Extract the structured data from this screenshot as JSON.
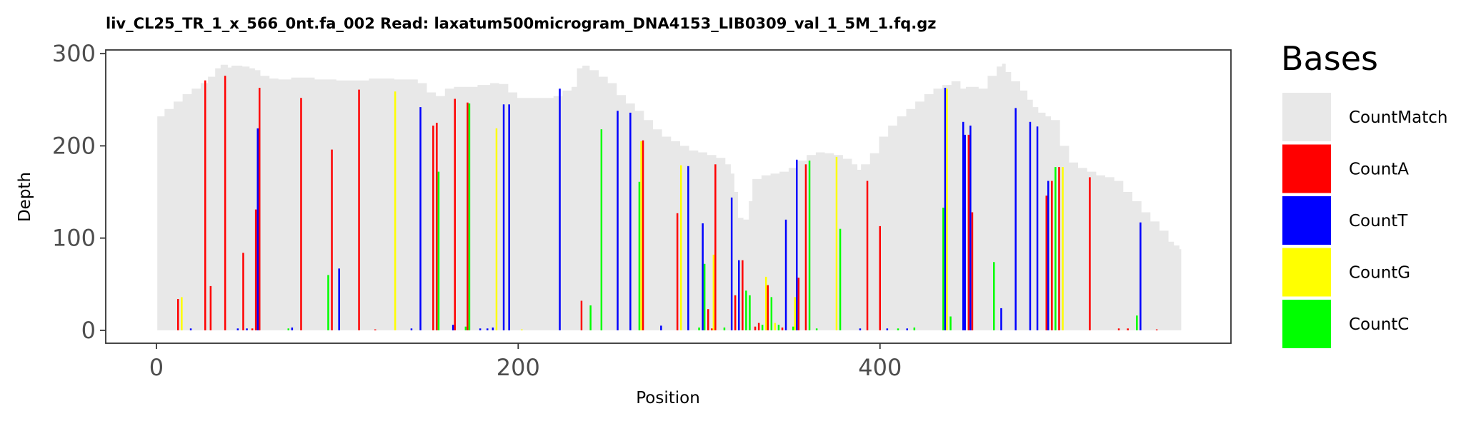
{
  "chart_data": {
    "type": "bar",
    "title": "liv_CL25_TR_1_x_566_0nt.fa_002   Read: laxatum500microgram_DNA4153_LIB0309_val_1_5M_1.fq.gz",
    "xlabel": "Position",
    "ylabel": "Depth",
    "xlim": [
      -28,
      594
    ],
    "ylim": [
      -14,
      304
    ],
    "x_ticks": [
      "0",
      "200",
      "400"
    ],
    "x_tick_values": [
      0,
      200,
      400
    ],
    "y_ticks": [
      "0",
      "100",
      "200",
      "300"
    ],
    "y_tick_values": [
      0,
      100,
      200,
      300
    ],
    "legend": {
      "title": "Bases",
      "position": "right",
      "entries": [
        {
          "label": "CountMatch",
          "color": "#e8e8e8"
        },
        {
          "label": "CountA",
          "color": "#ff0000"
        },
        {
          "label": "CountT",
          "color": "#0000ff"
        },
        {
          "label": "CountG",
          "color": "#ffff00"
        },
        {
          "label": "CountC",
          "color": "#00ff00"
        }
      ]
    },
    "match_profile": [
      [
        1,
        232
      ],
      [
        5,
        240
      ],
      [
        10,
        248
      ],
      [
        15,
        256
      ],
      [
        20,
        262
      ],
      [
        25,
        268
      ],
      [
        29,
        275
      ],
      [
        33,
        284
      ],
      [
        36,
        288
      ],
      [
        40,
        285
      ],
      [
        42,
        287
      ],
      [
        48,
        286
      ],
      [
        52,
        284
      ],
      [
        55,
        282
      ],
      [
        58,
        276
      ],
      [
        63,
        273
      ],
      [
        68,
        272
      ],
      [
        75,
        274
      ],
      [
        82,
        274
      ],
      [
        88,
        272
      ],
      [
        95,
        272
      ],
      [
        100,
        271
      ],
      [
        110,
        271
      ],
      [
        118,
        273
      ],
      [
        125,
        273
      ],
      [
        132,
        272
      ],
      [
        140,
        272
      ],
      [
        145,
        268
      ],
      [
        150,
        258
      ],
      [
        155,
        254
      ],
      [
        160,
        262
      ],
      [
        165,
        264
      ],
      [
        170,
        264
      ],
      [
        178,
        266
      ],
      [
        185,
        268
      ],
      [
        190,
        267
      ],
      [
        195,
        258
      ],
      [
        200,
        252
      ],
      [
        205,
        252
      ],
      [
        210,
        252
      ],
      [
        215,
        252
      ],
      [
        220,
        254
      ],
      [
        225,
        260
      ],
      [
        230,
        264
      ],
      [
        233,
        284
      ],
      [
        236,
        287
      ],
      [
        240,
        282
      ],
      [
        245,
        275
      ],
      [
        250,
        268
      ],
      [
        255,
        255
      ],
      [
        260,
        246
      ],
      [
        265,
        238
      ],
      [
        270,
        228
      ],
      [
        275,
        218
      ],
      [
        280,
        210
      ],
      [
        285,
        205
      ],
      [
        290,
        200
      ],
      [
        295,
        195
      ],
      [
        300,
        193
      ],
      [
        305,
        190
      ],
      [
        310,
        187
      ],
      [
        315,
        180
      ],
      [
        318,
        170
      ],
      [
        320,
        150
      ],
      [
        322,
        122
      ],
      [
        325,
        120
      ],
      [
        328,
        140
      ],
      [
        330,
        164
      ],
      [
        335,
        168
      ],
      [
        340,
        170
      ],
      [
        345,
        172
      ],
      [
        350,
        176
      ],
      [
        355,
        184
      ],
      [
        360,
        190
      ],
      [
        365,
        193
      ],
      [
        370,
        192
      ],
      [
        375,
        190
      ],
      [
        380,
        186
      ],
      [
        385,
        180
      ],
      [
        388,
        174
      ],
      [
        390,
        180
      ],
      [
        395,
        192
      ],
      [
        400,
        210
      ],
      [
        405,
        222
      ],
      [
        410,
        232
      ],
      [
        415,
        240
      ],
      [
        420,
        248
      ],
      [
        425,
        256
      ],
      [
        430,
        262
      ],
      [
        435,
        266
      ],
      [
        440,
        270
      ],
      [
        445,
        262
      ],
      [
        448,
        264
      ],
      [
        455,
        262
      ],
      [
        460,
        276
      ],
      [
        465,
        286
      ],
      [
        468,
        289
      ],
      [
        470,
        280
      ],
      [
        473,
        270
      ],
      [
        478,
        260
      ],
      [
        482,
        250
      ],
      [
        485,
        242
      ],
      [
        488,
        236
      ],
      [
        492,
        232
      ],
      [
        495,
        228
      ],
      [
        500,
        200
      ],
      [
        505,
        182
      ],
      [
        510,
        176
      ],
      [
        515,
        172
      ],
      [
        520,
        168
      ],
      [
        525,
        166
      ],
      [
        530,
        162
      ],
      [
        535,
        150
      ],
      [
        540,
        140
      ],
      [
        545,
        128
      ],
      [
        550,
        118
      ],
      [
        555,
        108
      ],
      [
        560,
        96
      ],
      [
        563,
        92
      ],
      [
        566,
        88
      ]
    ],
    "variant_bars": [
      {
        "x": 12,
        "base": "A",
        "value": 34
      },
      {
        "x": 14,
        "base": "G",
        "value": 36
      },
      {
        "x": 19,
        "base": "T",
        "value": 2
      },
      {
        "x": 27,
        "base": "A",
        "value": 271
      },
      {
        "x": 30,
        "base": "A",
        "value": 48
      },
      {
        "x": 38,
        "base": "A",
        "value": 276
      },
      {
        "x": 45,
        "base": "T",
        "value": 2
      },
      {
        "x": 48,
        "base": "A",
        "value": 84
      },
      {
        "x": 50,
        "base": "T",
        "value": 2
      },
      {
        "x": 53,
        "base": "A",
        "value": 2
      },
      {
        "x": 55,
        "base": "A",
        "value": 131
      },
      {
        "x": 56,
        "base": "T",
        "value": 219
      },
      {
        "x": 57,
        "base": "A",
        "value": 263
      },
      {
        "x": 73,
        "base": "C",
        "value": 2
      },
      {
        "x": 75,
        "base": "T",
        "value": 3
      },
      {
        "x": 80,
        "base": "A",
        "value": 252
      },
      {
        "x": 95,
        "base": "C",
        "value": 60
      },
      {
        "x": 97,
        "base": "A",
        "value": 196
      },
      {
        "x": 101,
        "base": "T",
        "value": 67
      },
      {
        "x": 112,
        "base": "A",
        "value": 261
      },
      {
        "x": 121,
        "base": "A",
        "value": 1
      },
      {
        "x": 132,
        "base": "G",
        "value": 259
      },
      {
        "x": 141,
        "base": "T",
        "value": 2
      },
      {
        "x": 146,
        "base": "T",
        "value": 242
      },
      {
        "x": 153,
        "base": "A",
        "value": 222
      },
      {
        "x": 155,
        "base": "A",
        "value": 225
      },
      {
        "x": 156,
        "base": "C",
        "value": 172
      },
      {
        "x": 164,
        "base": "T",
        "value": 6
      },
      {
        "x": 165,
        "base": "A",
        "value": 251
      },
      {
        "x": 171,
        "base": "C",
        "value": 4
      },
      {
        "x": 172,
        "base": "A",
        "value": 247
      },
      {
        "x": 173,
        "base": "C",
        "value": 246
      },
      {
        "x": 179,
        "base": "T",
        "value": 2
      },
      {
        "x": 183,
        "base": "T",
        "value": 2
      },
      {
        "x": 186,
        "base": "T",
        "value": 3
      },
      {
        "x": 188,
        "base": "G",
        "value": 219
      },
      {
        "x": 192,
        "base": "T",
        "value": 245
      },
      {
        "x": 195,
        "base": "T",
        "value": 245
      },
      {
        "x": 202,
        "base": "G",
        "value": 1
      },
      {
        "x": 223,
        "base": "T",
        "value": 262
      },
      {
        "x": 235,
        "base": "A",
        "value": 32
      },
      {
        "x": 240,
        "base": "C",
        "value": 27
      },
      {
        "x": 246,
        "base": "C",
        "value": 218
      },
      {
        "x": 255,
        "base": "T",
        "value": 238
      },
      {
        "x": 262,
        "base": "T",
        "value": 236
      },
      {
        "x": 267,
        "base": "C",
        "value": 161
      },
      {
        "x": 268,
        "base": "G",
        "value": 205
      },
      {
        "x": 269,
        "base": "A",
        "value": 206
      },
      {
        "x": 279,
        "base": "T",
        "value": 5
      },
      {
        "x": 288,
        "base": "A",
        "value": 127
      },
      {
        "x": 290,
        "base": "G",
        "value": 179
      },
      {
        "x": 294,
        "base": "T",
        "value": 178
      },
      {
        "x": 300,
        "base": "C",
        "value": 3
      },
      {
        "x": 302,
        "base": "T",
        "value": 116
      },
      {
        "x": 303,
        "base": "C",
        "value": 72
      },
      {
        "x": 305,
        "base": "A",
        "value": 23
      },
      {
        "x": 307,
        "base": "A",
        "value": 2
      },
      {
        "x": 308,
        "base": "G",
        "value": 82
      },
      {
        "x": 309,
        "base": "A",
        "value": 180
      },
      {
        "x": 314,
        "base": "C",
        "value": 3
      },
      {
        "x": 318,
        "base": "T",
        "value": 144
      },
      {
        "x": 320,
        "base": "A",
        "value": 38
      },
      {
        "x": 322,
        "base": "T",
        "value": 76
      },
      {
        "x": 324,
        "base": "A",
        "value": 76
      },
      {
        "x": 326,
        "base": "C",
        "value": 43
      },
      {
        "x": 328,
        "base": "C",
        "value": 38
      },
      {
        "x": 331,
        "base": "A",
        "value": 4
      },
      {
        "x": 333,
        "base": "A",
        "value": 8
      },
      {
        "x": 335,
        "base": "C",
        "value": 6
      },
      {
        "x": 337,
        "base": "G",
        "value": 58
      },
      {
        "x": 338,
        "base": "A",
        "value": 49
      },
      {
        "x": 340,
        "base": "C",
        "value": 36
      },
      {
        "x": 342,
        "base": "G",
        "value": 8
      },
      {
        "x": 344,
        "base": "C",
        "value": 6
      },
      {
        "x": 346,
        "base": "A",
        "value": 3
      },
      {
        "x": 348,
        "base": "T",
        "value": 120
      },
      {
        "x": 352,
        "base": "C",
        "value": 4
      },
      {
        "x": 353,
        "base": "G",
        "value": 36
      },
      {
        "x": 354,
        "base": "T",
        "value": 185
      },
      {
        "x": 355,
        "base": "A",
        "value": 57
      },
      {
        "x": 359,
        "base": "A",
        "value": 180
      },
      {
        "x": 361,
        "base": "C",
        "value": 184
      },
      {
        "x": 365,
        "base": "C",
        "value": 2
      },
      {
        "x": 376,
        "base": "G",
        "value": 188
      },
      {
        "x": 378,
        "base": "C",
        "value": 110
      },
      {
        "x": 389,
        "base": "T",
        "value": 2
      },
      {
        "x": 393,
        "base": "A",
        "value": 162
      },
      {
        "x": 400,
        "base": "A",
        "value": 113
      },
      {
        "x": 404,
        "base": "T",
        "value": 2
      },
      {
        "x": 410,
        "base": "C",
        "value": 2
      },
      {
        "x": 415,
        "base": "T",
        "value": 2
      },
      {
        "x": 419,
        "base": "C",
        "value": 3
      },
      {
        "x": 435,
        "base": "C",
        "value": 133
      },
      {
        "x": 436,
        "base": "T",
        "value": 263
      },
      {
        "x": 437,
        "base": "G",
        "value": 262
      },
      {
        "x": 439,
        "base": "C",
        "value": 15
      },
      {
        "x": 446,
        "base": "T",
        "value": 226
      },
      {
        "x": 447,
        "base": "T",
        "value": 212
      },
      {
        "x": 449,
        "base": "A",
        "value": 212
      },
      {
        "x": 450,
        "base": "T",
        "value": 222
      },
      {
        "x": 451,
        "base": "A",
        "value": 128
      },
      {
        "x": 463,
        "base": "C",
        "value": 74
      },
      {
        "x": 467,
        "base": "T",
        "value": 24
      },
      {
        "x": 475,
        "base": "T",
        "value": 241
      },
      {
        "x": 483,
        "base": "T",
        "value": 226
      },
      {
        "x": 487,
        "base": "T",
        "value": 221
      },
      {
        "x": 492,
        "base": "A",
        "value": 146
      },
      {
        "x": 493,
        "base": "T",
        "value": 162
      },
      {
        "x": 495,
        "base": "A",
        "value": 162
      },
      {
        "x": 497,
        "base": "C",
        "value": 177
      },
      {
        "x": 499,
        "base": "A",
        "value": 177
      },
      {
        "x": 501,
        "base": "G",
        "value": 177
      },
      {
        "x": 516,
        "base": "A",
        "value": 166
      },
      {
        "x": 532,
        "base": "A",
        "value": 2
      },
      {
        "x": 537,
        "base": "A",
        "value": 2
      },
      {
        "x": 542,
        "base": "C",
        "value": 16
      },
      {
        "x": 544,
        "base": "T",
        "value": 117
      },
      {
        "x": 553,
        "base": "A",
        "value": 1
      }
    ]
  }
}
